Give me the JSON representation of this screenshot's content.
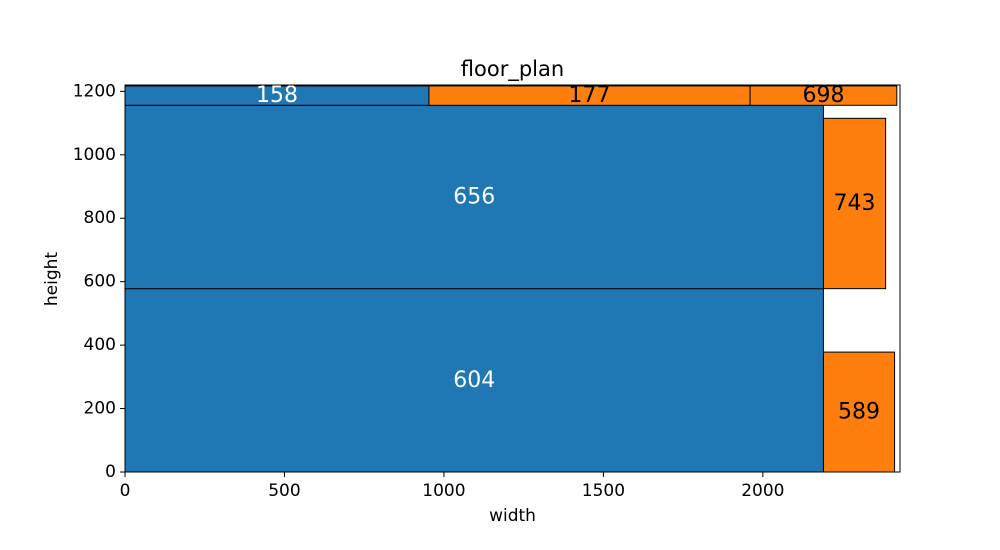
{
  "chart_data": {
    "type": "treemap",
    "title": "floor_plan",
    "xlabel": "width",
    "ylabel": "height",
    "xlim": [
      0,
      2430
    ],
    "ylim": [
      0,
      1220
    ],
    "x_ticks": [
      0,
      500,
      1000,
      1500,
      2000
    ],
    "y_ticks": [
      0,
      200,
      400,
      600,
      800,
      1000,
      1200
    ],
    "colors": {
      "blue": "#1f77b4",
      "orange": "#ff7f0e"
    },
    "rooms": [
      {
        "label": "604",
        "x0": 0,
        "y0": 0,
        "x1": 2190,
        "y1": 578,
        "color": "blue",
        "text_color": "#ffffff"
      },
      {
        "label": "656",
        "x0": 0,
        "y0": 578,
        "x1": 2190,
        "y1": 1156,
        "color": "blue",
        "text_color": "#ffffff"
      },
      {
        "label": "158",
        "x0": 0,
        "y0": 1156,
        "x1": 953,
        "y1": 1217,
        "color": "blue",
        "text_color": "#ffffff"
      },
      {
        "label": "177",
        "x0": 953,
        "y0": 1156,
        "x1": 1960,
        "y1": 1217,
        "color": "orange",
        "text_color": "#000000"
      },
      {
        "label": "698",
        "x0": 1960,
        "y0": 1156,
        "x1": 2420,
        "y1": 1217,
        "color": "orange",
        "text_color": "#000000"
      },
      {
        "label": "743",
        "x0": 2190,
        "y0": 578,
        "x1": 2385,
        "y1": 1115,
        "color": "orange",
        "text_color": "#000000"
      },
      {
        "label": "589",
        "x0": 2190,
        "y0": 0,
        "x1": 2413,
        "y1": 378,
        "color": "orange",
        "text_color": "#000000"
      }
    ]
  }
}
